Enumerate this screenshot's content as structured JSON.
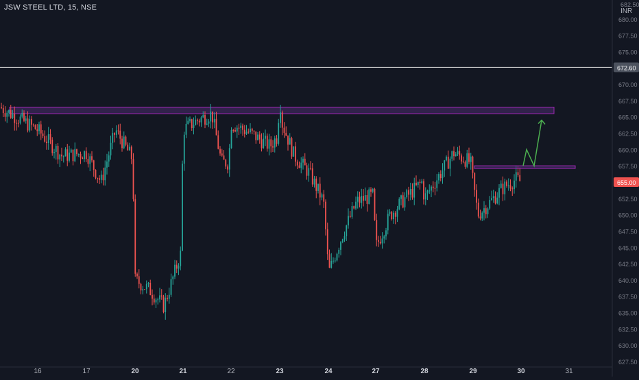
{
  "header": {
    "symbol": "JSW STEEL LTD",
    "interval": "15",
    "exchange": "NSE",
    "title": "JSW STEEL LTD, 15, NSE"
  },
  "price_axis": {
    "currency": "INR",
    "top_partial_label": "682.50",
    "labels": [
      "680.00",
      "677.50",
      "675.00",
      "672.50",
      "670.00",
      "667.50",
      "665.00",
      "662.50",
      "660.00",
      "657.50",
      "655.00",
      "652.50",
      "650.00",
      "647.50",
      "645.00",
      "642.50",
      "640.00",
      "637.50",
      "635.00",
      "632.50",
      "630.00",
      "627.50"
    ],
    "tags": [
      {
        "label": "672.60",
        "price": 672.6,
        "style": "horizontal-line"
      },
      {
        "label": "655.00",
        "price": 655.0,
        "style": "last-price"
      }
    ]
  },
  "time_axis": {
    "labels": [
      "16",
      "17",
      "20",
      "21",
      "22",
      "23",
      "24",
      "27",
      "28",
      "29",
      "30",
      "31"
    ],
    "bold_labels": [
      "20",
      "21",
      "23",
      "24",
      "27",
      "28",
      "29",
      "30"
    ]
  },
  "colors": {
    "background": "#131722",
    "up": "#26a69a",
    "down": "#ef5350",
    "zone_fill": "#4a2c6e",
    "zone_border": "#9c27b0",
    "resistance_line": "#9c27b0",
    "projection_arrow": "#4caf50",
    "horizontal_line": "#e0e0e0",
    "last_price_tag": "#ef5350"
  },
  "chart_data": {
    "type": "candlestick",
    "title": "JSW STEEL LTD, 15, NSE",
    "ylim": [
      627.5,
      682.5
    ],
    "grid": false,
    "x_ticks": [
      "16",
      "17",
      "20",
      "21",
      "22",
      "23",
      "24",
      "27",
      "28",
      "29",
      "30",
      "31"
    ],
    "y_ticks": [
      627.5,
      630,
      632.5,
      635,
      637.5,
      640,
      642.5,
      645,
      647.5,
      650,
      652.5,
      655,
      657.5,
      660,
      662.5,
      665,
      667.5,
      670,
      672.5,
      675,
      677.5,
      680
    ],
    "close_path": [
      [
        "16",
        663.0
      ],
      [
        "16.5",
        659.0
      ],
      [
        "17",
        659.5
      ],
      [
        "17.3",
        655.0
      ],
      [
        "17.6",
        663.0
      ],
      [
        "17.95",
        658.5
      ],
      [
        "20",
        640.0
      ],
      [
        "20.3",
        638.5
      ],
      [
        "20.6",
        636.0
      ],
      [
        "20.95",
        644.0
      ],
      [
        "21",
        663.0
      ],
      [
        "21.3",
        664.5
      ],
      [
        "21.6",
        665.5
      ],
      [
        "21.8",
        658.0
      ],
      [
        "21.95",
        658.0
      ],
      [
        "22",
        664.0
      ],
      [
        "22.4",
        662.5
      ],
      [
        "22.8",
        660.5
      ],
      [
        "22.95",
        662.0
      ],
      [
        "23",
        668.0
      ],
      [
        "23.05",
        664.0
      ],
      [
        "23.3",
        659.0
      ],
      [
        "23.6",
        656.5
      ],
      [
        "23.9",
        652.0
      ],
      [
        "23.97",
        645.0
      ],
      [
        "24",
        641.0
      ],
      [
        "24.3",
        647.0
      ],
      [
        "24.6",
        652.0
      ],
      [
        "24.95",
        653.0
      ],
      [
        "27",
        645.0
      ],
      [
        "27.3",
        650.0
      ],
      [
        "27.6",
        652.5
      ],
      [
        "27.95",
        655.0
      ],
      [
        "28",
        652.5
      ],
      [
        "28.3",
        656.0
      ],
      [
        "28.6",
        659.5
      ],
      [
        "28.95",
        658.0
      ],
      [
        "29",
        655.0
      ],
      [
        "29.1",
        650.0
      ],
      [
        "29.3",
        651.5
      ],
      [
        "29.6",
        654.0
      ],
      [
        "29.9",
        655.5
      ],
      [
        "30",
        655.0
      ]
    ],
    "last_price": 655.0,
    "annotations": [
      {
        "type": "zone",
        "from": 665.5,
        "to": 666.5
      },
      {
        "type": "line",
        "price": 657.3
      },
      {
        "type": "horizontal_line",
        "price": 672.6
      },
      {
        "type": "arrow",
        "direction": "up"
      }
    ]
  }
}
